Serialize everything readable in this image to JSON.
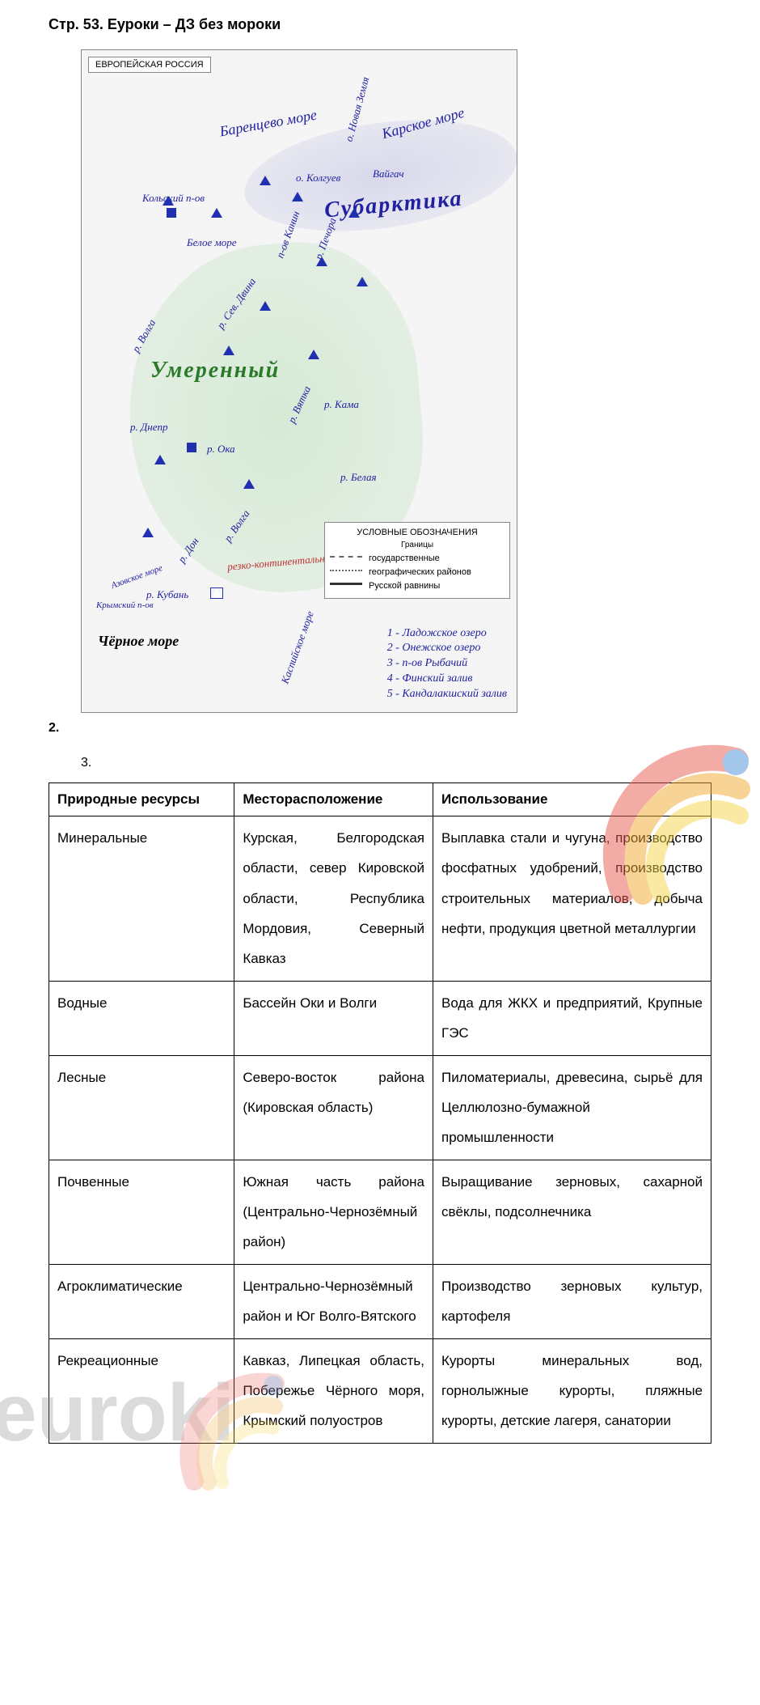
{
  "page_title": "Стр. 53. Еуроки – ДЗ без мороки",
  "map": {
    "title": "ЕВРОПЕЙСКАЯ РОССИЯ",
    "green_area_color": "rgba(120,200,120,0.25)",
    "blue_area_color": "rgba(100,100,200,0.2)",
    "labels": {
      "barents": "Баренцево море",
      "karskoe": "Карское море",
      "novaya_zemlya": "о. Новая Земля",
      "vaigach": "Вайгач",
      "kolguev": "о. Колгуев",
      "kolsky": "Кольский п-ов",
      "subarktika": "Субарктика",
      "beloe": "Белое море",
      "kanin": "п-ов Канин",
      "pechora": "р. Печора",
      "sev_dvina": "р. Сев. Двина",
      "umerenny": "Умеренный",
      "volga1": "р. Волга",
      "vyatka": "р. Вятка",
      "kama": "р. Кама",
      "oka": "р. Ока",
      "don": "р. Дон",
      "dnepr": "р. Днепр",
      "belaya": "р. Белая",
      "volga2": "р. Волга",
      "kuban": "р. Кубань",
      "azov": "Азовское море",
      "krym": "Крымский п-ов",
      "black": "Чёрное море",
      "kaspiy": "Каспийское море",
      "continental": "резко-континентальная"
    },
    "legend": {
      "title": "УСЛОВНЫЕ ОБОЗНАЧЕНИЯ",
      "subtitle": "Границы",
      "items": [
        "государственные",
        "географических районов",
        "Русской равнины"
      ]
    },
    "handwritten_list": [
      "1 - Ладожское озеро",
      "2 - Онежское озеро",
      "3 - п-ов Рыбачий",
      "4 - Финский залив",
      "5 - Кандалакшский залив"
    ]
  },
  "section2": "2.",
  "section3": "3.",
  "table": {
    "headers": [
      "Природные ресурсы",
      "Месторасположение",
      "Использование"
    ],
    "rows": [
      {
        "c1": "Минеральные",
        "c2": "Курская, Белгородская области, север Кировской области, Республика Мордовия, Северный Кавказ",
        "c3": "Выплавка стали и чугуна, производство фосфатных удобрений, производство строительных материалов, добыча нефти, продукция цветной металлургии"
      },
      {
        "c1": "Водные",
        "c2": "Бассейн Оки и Волги",
        "c3": "Вода для ЖКХ и предприятий, Крупные ГЭС"
      },
      {
        "c1": "Лесные",
        "c2": "Северо-восток района (Кировская область)",
        "c3": "Пиломатериалы, древесина, сырьё для Целлюлозно-бумажной промышленности"
      },
      {
        "c1": "Почвенные",
        "c2": "Южная часть района (Центрально-Чернозёмный район)",
        "c3": "Выращивание зерновых, сахарной свёклы, подсолнечника"
      },
      {
        "c1": "Агроклиматические",
        "c2": "Центрально-Чернозёмный район и Юг Волго-Вятского",
        "c3": "Производство зерновых культур, картофеля"
      },
      {
        "c1": "Рекреационные",
        "c2": "Кавказ, Липецкая область, Побережье Чёрного моря, Крымский полуостров",
        "c3": "Курорты минеральных вод, горнолыжные курорты, пляжные курорты, детские лагеря, санатории"
      }
    ]
  },
  "watermark_text": "euroki",
  "colors": {
    "blue_pen": "#2020a0",
    "green_pen": "#2a7a2a",
    "red_pen": "#c03030",
    "black": "#000000",
    "wm_red": "#e85a4f",
    "wm_orange": "#f0a830",
    "wm_yellow": "#f5d547",
    "wm_blue": "#4a90d9"
  }
}
